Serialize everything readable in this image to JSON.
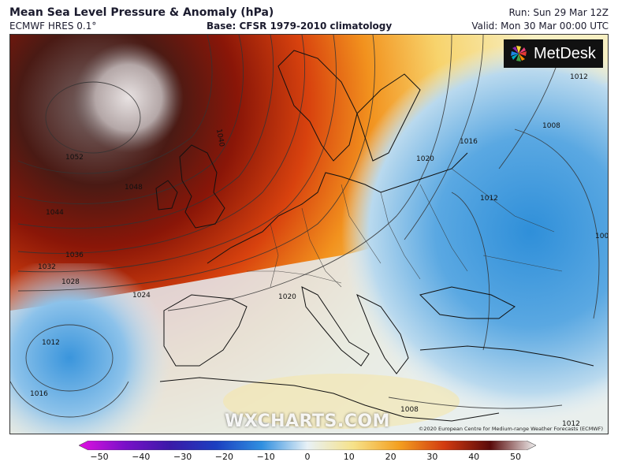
{
  "header": {
    "title": "Mean Sea Level Pressure & Anomaly (hPa)",
    "model": "ECMWF HRES 0.1°",
    "base": "Base: CFSR 1979-2010 climatology",
    "run": "Run: Sun 29 Mar 12Z",
    "valid": "Valid: Mon 30 Mar 00:00 UTC"
  },
  "logo": {
    "text": "MetDesk",
    "icon": "metdesk-logo-icon"
  },
  "watermark": "WXCHARTS.COM",
  "copyright": "©2020 European Centre for Medium-range Weather Forecasts (ECMWF)",
  "isobar_labels": [
    "1052",
    "1048",
    "1044",
    "1040",
    "1036",
    "1032",
    "1028",
    "1024",
    "1020",
    "1016",
    "1012",
    "1008",
    "1012",
    "1016",
    "1012",
    "1012",
    "1008",
    "1008",
    "1020"
  ],
  "colorbar": {
    "min": -50,
    "max": 50,
    "ticks": [
      "−50",
      "−40",
      "−30",
      "−20",
      "−10",
      "0",
      "10",
      "20",
      "30",
      "40",
      "50"
    ],
    "colors": [
      "#e010e0",
      "#7a10c8",
      "#3a1aa8",
      "#1c3fc0",
      "#2f8fe0",
      "#e8f1f6",
      "#f6e28a",
      "#f4a020",
      "#d23a10",
      "#5a0a0a",
      "#f0f0f0"
    ]
  }
}
